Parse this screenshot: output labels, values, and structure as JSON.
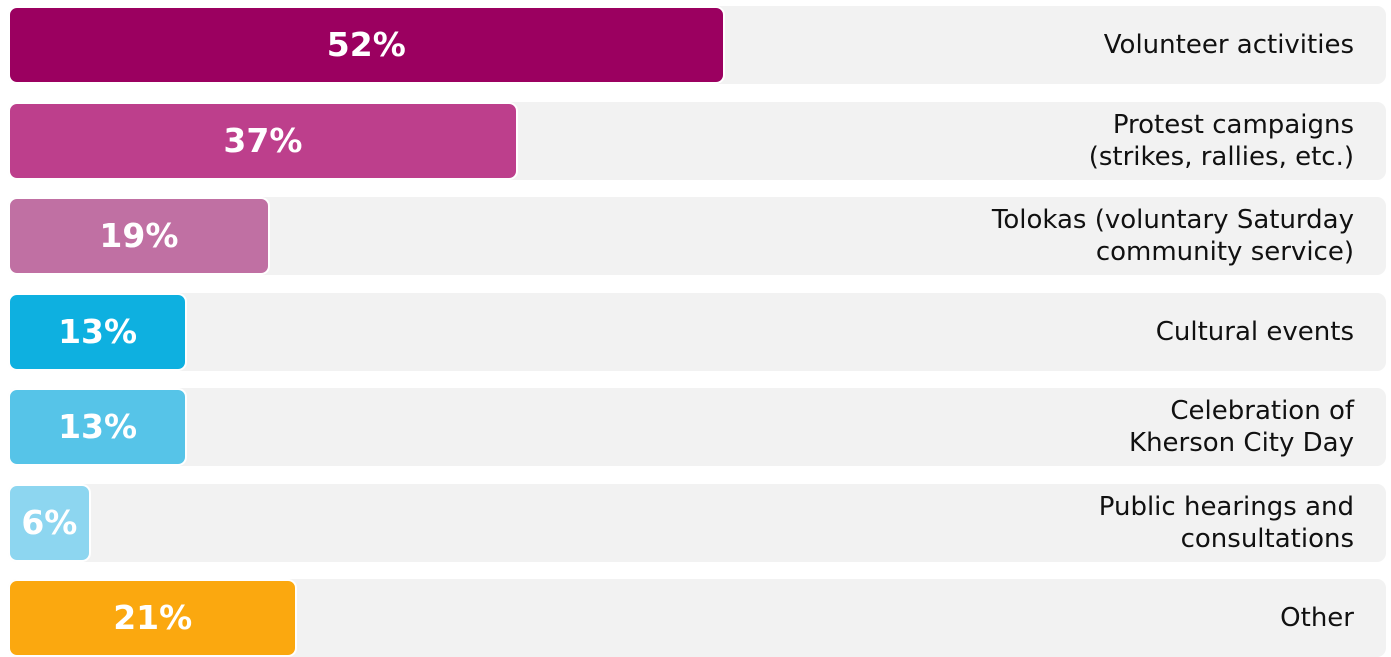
{
  "chart_data": {
    "type": "bar",
    "orientation": "horizontal",
    "categories": [
      "Volunteer activities",
      "Protest campaigns\n(strikes, rallies, etc.)",
      "Tolokas (voluntary Saturday\ncommunity service)",
      "Cultural events",
      "Celebration of\nKherson City Day",
      "Public hearings and\nconsultations",
      "Other"
    ],
    "values": [
      52,
      37,
      19,
      13,
      13,
      6,
      21
    ],
    "value_labels": [
      "52%",
      "37%",
      "19%",
      "13%",
      "13%",
      "6%",
      "21%"
    ],
    "colors": [
      "#9b0060",
      "#bd3f8c",
      "#c070a3",
      "#0eb0e0",
      "#56c4e8",
      "#8dd6f0",
      "#fba80f"
    ],
    "xlim": [
      0,
      100
    ]
  }
}
